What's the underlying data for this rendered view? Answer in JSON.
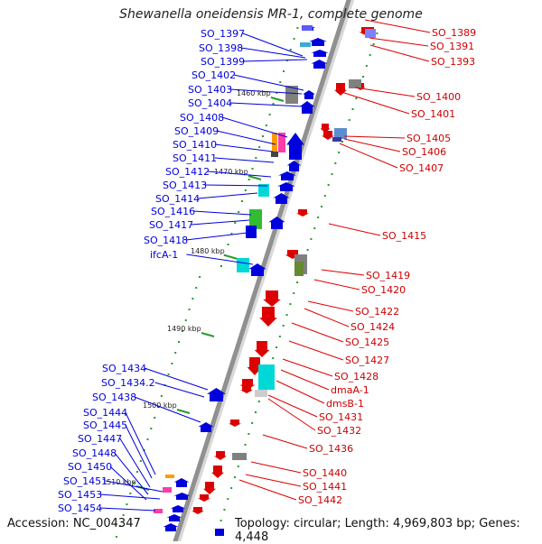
{
  "title": "Shewanella oneidensis MR-1, complete genome",
  "accession": "Accession: NC_004347",
  "topology": "Topology: circular; Length: 4,969,803 bp; Genes: 4,448",
  "colors": {
    "forward": "#0000dd",
    "reverse": "#dd0000",
    "backbone": "#909090"
  },
  "kbp_markers": [
    "1460 kbp",
    "1470 kbp",
    "1480 kbp",
    "1490 kbp",
    "1500 kbp",
    "1510 kbp"
  ],
  "left_labels": [
    "SO_1397",
    "SO_1398",
    "SO_1399",
    "SO_1402",
    "SO_1403",
    "SO_1404",
    "SO_1408",
    "SO_1409",
    "SO_1410",
    "SO_1411",
    "SO_1412",
    "SO_1413",
    "SO_1414",
    "SO_1416",
    "SO_1417",
    "SO_1418",
    "ifcA-1",
    "SO_1434",
    "SO_1434.2",
    "SO_1438",
    "SO_1444",
    "SO_1445",
    "SO_1447",
    "SO_1448",
    "SO_1450",
    "SO_1451",
    "SO_1453",
    "SO_1454"
  ],
  "right_labels": [
    "SO_1389",
    "SO_1391",
    "SO_1393",
    "SO_1400",
    "SO_1401",
    "SO_1405",
    "SO_1406",
    "SO_1407",
    "SO_1415",
    "SO_1419",
    "SO_1420",
    "SO_1422",
    "SO_1424",
    "SO_1425",
    "SO_1427",
    "SO_1428",
    "dmaA-1",
    "dmsB-1",
    "SO_1431",
    "SO_1432",
    "SO_1436",
    "SO_1440",
    "SO_1441",
    "SO_1442"
  ]
}
